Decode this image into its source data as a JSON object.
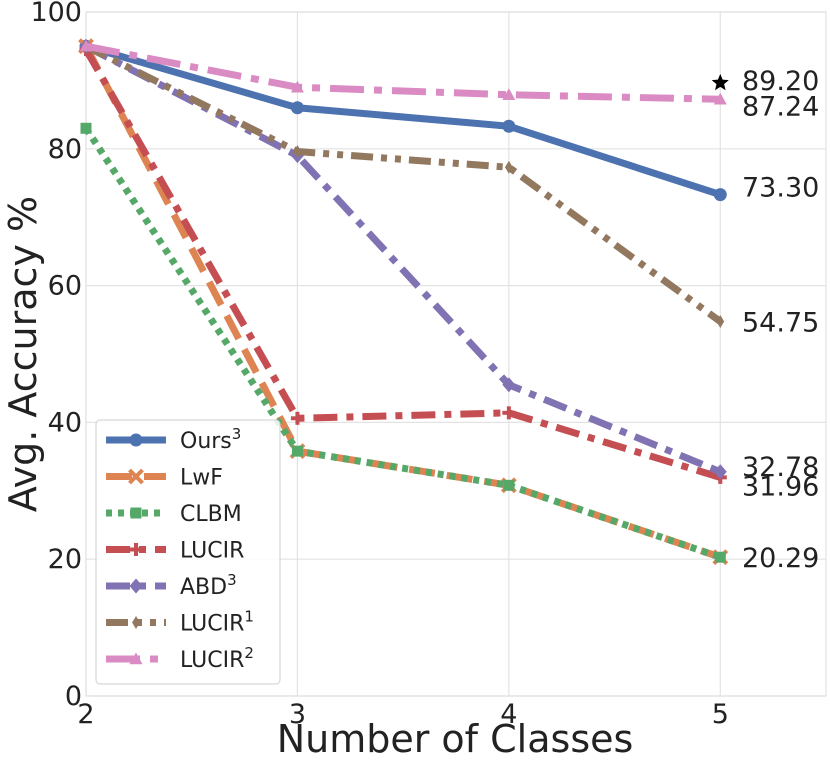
{
  "chart_data": {
    "type": "line",
    "xlabel": "Number of Classes",
    "ylabel": "Avg. Accuracy %",
    "x": [
      2,
      3,
      4,
      5
    ],
    "xlim": [
      2,
      5.5
    ],
    "ylim": [
      0,
      100
    ],
    "xticks": [
      "2",
      "3",
      "4",
      "5"
    ],
    "yticks": [
      "0",
      "20",
      "40",
      "60",
      "80",
      "100"
    ],
    "grid": true,
    "legend_position": "lower-left",
    "series": [
      {
        "name": "Ours",
        "sup": "3",
        "values": [
          95.0,
          86.0,
          83.3,
          73.3
        ],
        "color": "#4c72b0",
        "dash": "solid",
        "marker": "circle"
      },
      {
        "name": "LwF",
        "sup": "",
        "values": [
          95.0,
          35.8,
          30.8,
          20.29
        ],
        "color": "#dd8452",
        "dash": "dash",
        "marker": "x"
      },
      {
        "name": "CLBM",
        "sup": "",
        "values": [
          83.0,
          35.8,
          30.8,
          20.29
        ],
        "color": "#55a868",
        "dash": "dot",
        "marker": "square"
      },
      {
        "name": "LUCIR",
        "sup": "",
        "values": [
          94.5,
          40.6,
          41.4,
          31.96
        ],
        "color": "#c44e52",
        "dash": "dashdot",
        "marker": "plus"
      },
      {
        "name": "ABD",
        "sup": "3",
        "values": [
          95.0,
          79.0,
          45.5,
          32.78
        ],
        "color": "#8172b3",
        "dash": "dashdot",
        "marker": "diamond"
      },
      {
        "name": "LUCIR",
        "sup": "1",
        "values": [
          95.0,
          79.6,
          77.3,
          54.75
        ],
        "color": "#937860",
        "dash": "dashdotdot",
        "marker": "thin-diamond"
      },
      {
        "name": "LUCIR",
        "sup": "2",
        "values": [
          95.0,
          89.0,
          87.9,
          87.24
        ],
        "color": "#da8bc3",
        "dash": "longdashdot",
        "marker": "triangle"
      }
    ],
    "annotations": [
      {
        "text": "89.20",
        "x": 5,
        "y": 89.2
      },
      {
        "text": "87.24",
        "x": 5,
        "y": 87.24
      },
      {
        "text": "73.30",
        "x": 5,
        "y": 73.3
      },
      {
        "text": "54.75",
        "x": 5,
        "y": 54.75
      },
      {
        "text": "32.78",
        "x": 5,
        "y": 32.78
      },
      {
        "text": "31.96",
        "x": 5,
        "y": 31.96
      },
      {
        "text": "20.29",
        "x": 5,
        "y": 20.29
      }
    ],
    "star_marker": {
      "x": 5,
      "y": 89.2,
      "color": "#000000"
    }
  }
}
